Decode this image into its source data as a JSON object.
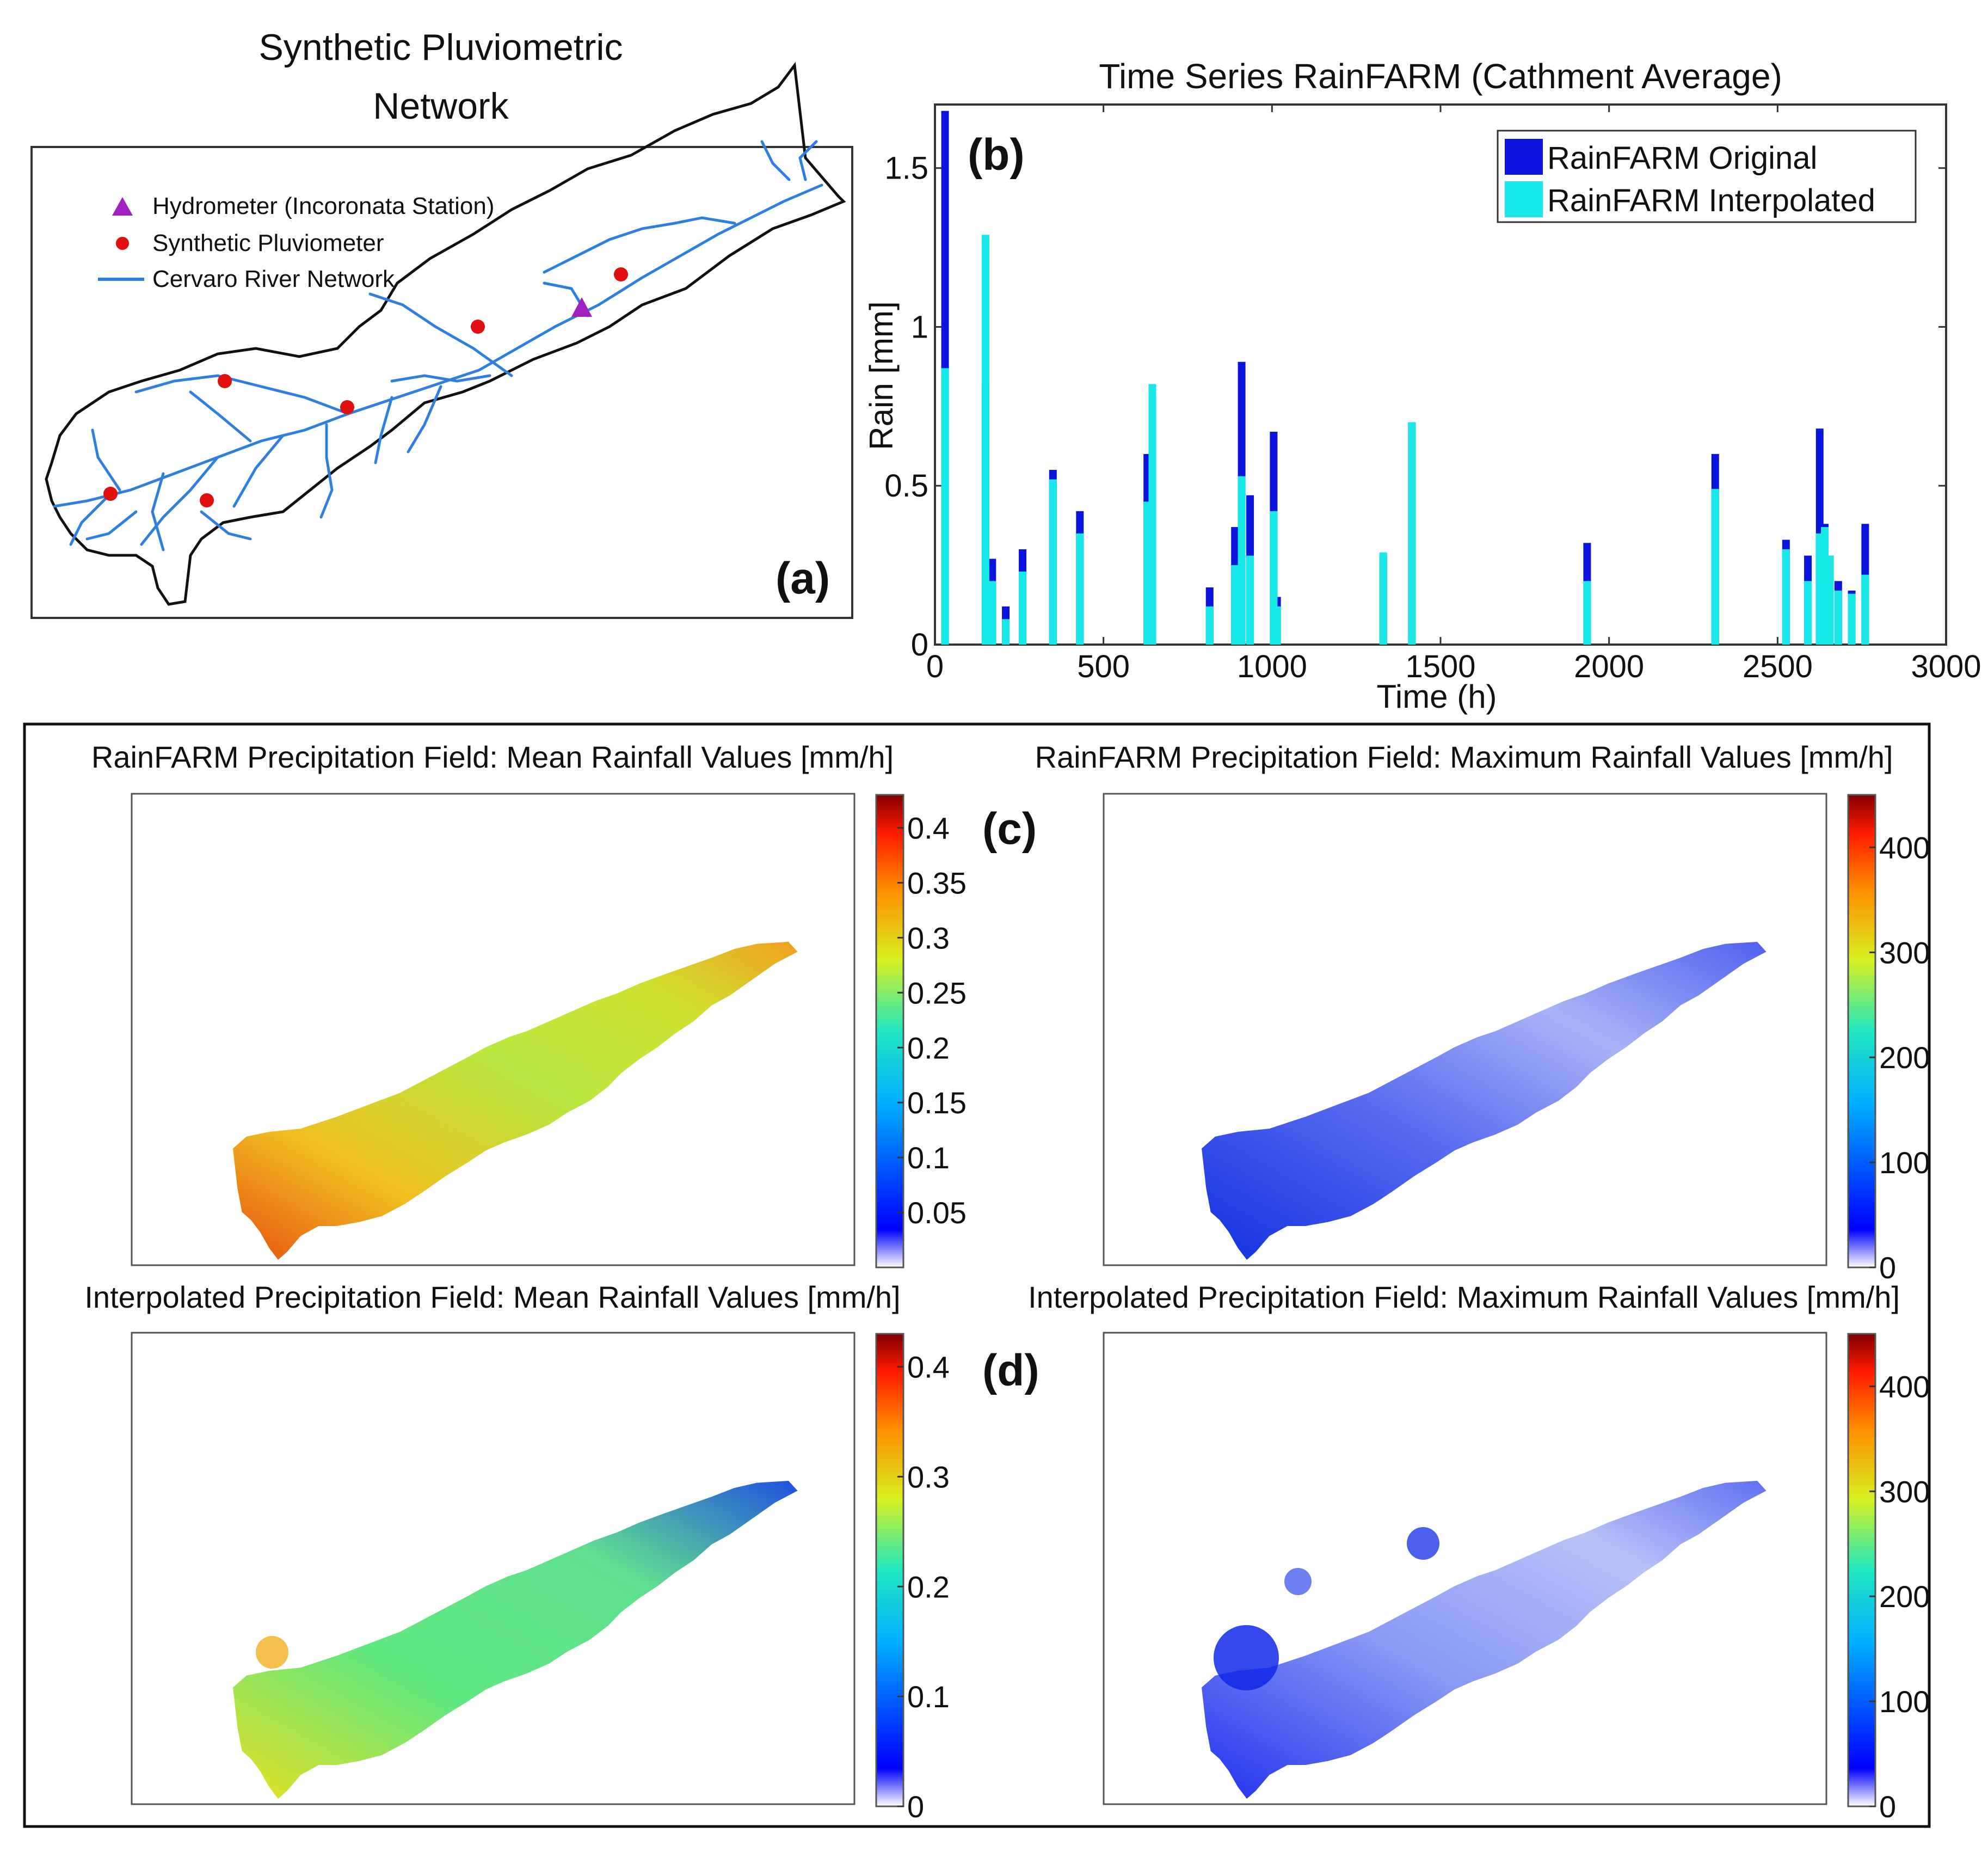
{
  "panel_a": {
    "title_line1": "Synthetic Pluviometric",
    "title_line2": "Network",
    "legend": {
      "hydrometer": "Hydrometer (Incoronata Station)",
      "pluviometer": "Synthetic Pluviometer",
      "river": "Cervaro River Network"
    },
    "label": "(a)",
    "colors": {
      "basin": "#111111",
      "river": "#2f7fe0",
      "pluviometer": "#e01010",
      "hydrometer": "#a020c0"
    }
  },
  "panel_b": {
    "label": "(b)"
  },
  "panel_c": {
    "label": "(c)",
    "mean_title": "RainFARM Precipitation Field: Mean Rainfall Values [mm/h]",
    "max_title": "RainFARM Precipitation Field: Maximum Rainfall Values [mm/h]",
    "mean_ticks": [
      "0.4",
      "0.35",
      "0.3",
      "0.25",
      "0.2",
      "0.15",
      "0.1",
      "0.05"
    ],
    "mean_tick_values": [
      0.4,
      0.35,
      0.3,
      0.25,
      0.2,
      0.15,
      0.1,
      0.05
    ],
    "mean_cmax": 0.43,
    "max_ticks": [
      "400",
      "300",
      "200",
      "100",
      "0"
    ],
    "max_tick_values": [
      400,
      300,
      200,
      100,
      0
    ],
    "max_cmax": 450
  },
  "panel_d": {
    "label": "(d)",
    "mean_title": "Interpolated Precipitation Field: Mean Rainfall Values [mm/h]",
    "max_title": "Interpolated Precipitation Field: Maximum Rainfall Values [mm/h]",
    "mean_ticks": [
      "0.4",
      "0.3",
      "0.2",
      "0.1",
      "0"
    ],
    "mean_tick_values": [
      0.4,
      0.3,
      0.2,
      0.1,
      0
    ],
    "mean_cmax": 0.43,
    "max_ticks": [
      "400",
      "300",
      "200",
      "100",
      "0"
    ],
    "max_tick_values": [
      400,
      300,
      200,
      100,
      0
    ],
    "max_cmax": 450
  },
  "chart_data": {
    "type": "bar",
    "title": "Time Series RainFARM (Cathment Average)",
    "xlabel": "Time (h)",
    "ylabel": "Rain [mm]",
    "xlim": [
      0,
      3000
    ],
    "ylim": [
      0,
      1.7
    ],
    "xticks": [
      0,
      500,
      1000,
      1500,
      2000,
      2500,
      3000
    ],
    "xtick_labels": [
      "0",
      "500",
      "1000",
      "1500",
      "2000",
      "2500",
      "3000"
    ],
    "yticks": [
      0,
      0.5,
      1,
      1.5
    ],
    "ytick_labels": [
      "0",
      "0.5",
      "1",
      "1.5"
    ],
    "legend_position": "top-right",
    "series": [
      {
        "name": "RainFARM Original",
        "color": "#0a14dc",
        "x": [
          30,
          150,
          170,
          210,
          260,
          350,
          430,
          630,
          645,
          815,
          890,
          910,
          935,
          1005,
          1015,
          1330,
          1415,
          1935,
          2315,
          2525,
          2590,
          2625,
          2640,
          2655,
          2680,
          2720,
          2760
        ],
        "values": [
          1.68,
          0.82,
          0.27,
          0.12,
          0.3,
          0.55,
          0.42,
          0.6,
          0.78,
          0.18,
          0.37,
          0.89,
          0.47,
          0.67,
          0.15,
          0.28,
          0.7,
          0.32,
          0.6,
          0.33,
          0.28,
          0.68,
          0.38,
          0.28,
          0.2,
          0.17,
          0.38
        ]
      },
      {
        "name": "RainFARM Interpolated",
        "color": "#19e8e8",
        "x": [
          30,
          150,
          170,
          210,
          260,
          350,
          430,
          630,
          645,
          815,
          890,
          910,
          935,
          1005,
          1015,
          1330,
          1415,
          1935,
          2315,
          2525,
          2590,
          2625,
          2640,
          2655,
          2680,
          2720,
          2760
        ],
        "values": [
          0.87,
          1.29,
          0.2,
          0.08,
          0.23,
          0.52,
          0.35,
          0.45,
          0.82,
          0.12,
          0.25,
          0.53,
          0.28,
          0.42,
          0.12,
          0.29,
          0.7,
          0.2,
          0.49,
          0.3,
          0.2,
          0.35,
          0.37,
          0.28,
          0.17,
          0.16,
          0.22
        ]
      }
    ]
  }
}
